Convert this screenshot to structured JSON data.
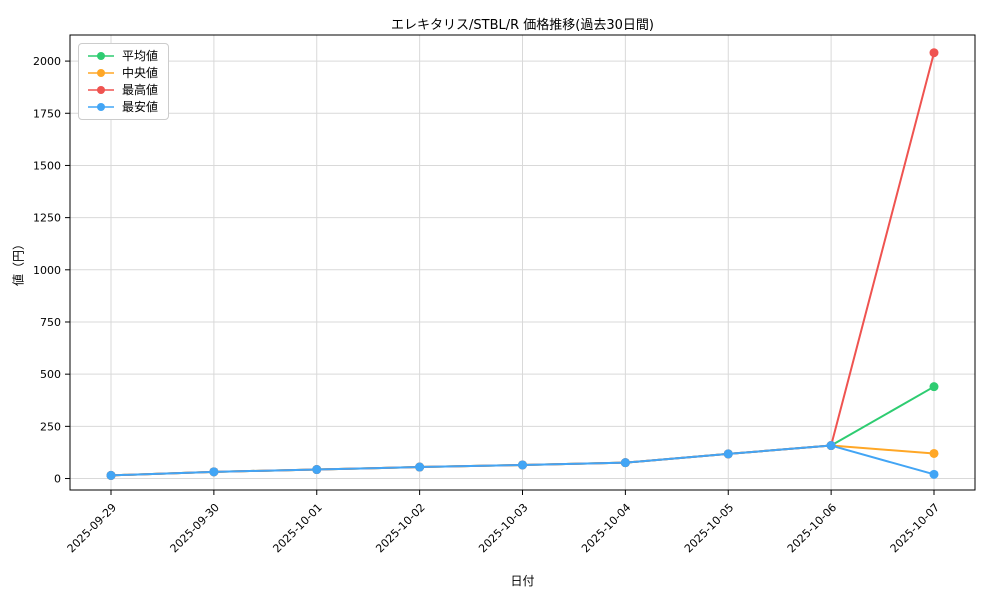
{
  "chart_data": {
    "type": "line",
    "title": "エレキタリス/STBL/R 価格推移(過去30日間)",
    "xlabel": "日付",
    "ylabel": "値（円）",
    "categories": [
      "2025-09-29",
      "2025-09-30",
      "2025-10-01",
      "2025-10-02",
      "2025-10-03",
      "2025-10-04",
      "2025-10-05",
      "2025-10-06",
      "2025-10-07"
    ],
    "series": [
      {
        "name": "平均値",
        "color": "#2ecc71",
        "values": [
          15,
          32,
          43,
          55,
          65,
          76,
          118,
          158,
          440
        ]
      },
      {
        "name": "中央値",
        "color": "#ffa726",
        "values": [
          15,
          32,
          43,
          55,
          65,
          76,
          118,
          158,
          120
        ]
      },
      {
        "name": "最高値",
        "color": "#ef5350",
        "values": [
          15,
          32,
          43,
          55,
          65,
          76,
          118,
          158,
          2040
        ]
      },
      {
        "name": "最安値",
        "color": "#42a5f5",
        "values": [
          15,
          32,
          43,
          55,
          65,
          76,
          118,
          158,
          20
        ]
      }
    ],
    "yticks": [
      0,
      250,
      500,
      750,
      1000,
      1250,
      1500,
      1750,
      2000
    ],
    "ylim": [
      -55,
      2125
    ],
    "grid": true,
    "legend_position": "upper left",
    "x_tick_rotation": 45,
    "grid_color": "#d9d9d9",
    "axis_color": "#000000",
    "background_color": "#ffffff"
  }
}
